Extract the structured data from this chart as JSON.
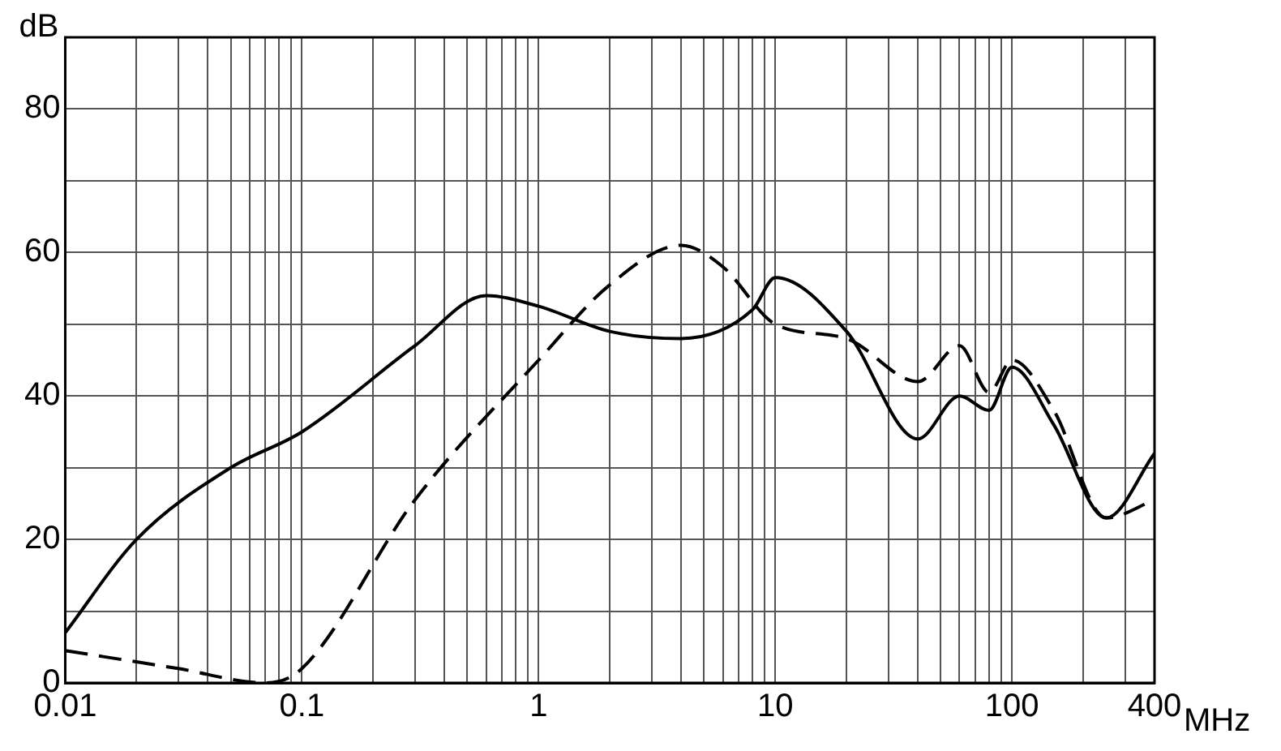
{
  "chart_data": {
    "type": "line",
    "xlabel": "MHz",
    "ylabel": "dB",
    "log": "x",
    "grid": true,
    "legend": false,
    "marker": "none",
    "xlim": [
      0.01,
      400
    ],
    "ylim": [
      0,
      90
    ],
    "xticks": [
      0.01,
      {
        "value": 0.02,
        "label": null
      },
      {
        "value": 0.03,
        "label": null
      },
      {
        "value": 0.04,
        "label": null
      },
      {
        "value": 0.05,
        "label": null
      },
      {
        "value": 0.06,
        "label": null
      },
      {
        "value": 0.07,
        "label": null
      },
      {
        "value": 0.08,
        "label": null
      },
      {
        "value": 0.09,
        "label": null
      },
      0.1,
      {
        "value": 0.2,
        "label": null
      },
      {
        "value": 0.3,
        "label": null
      },
      {
        "value": 0.4,
        "label": null
      },
      {
        "value": 0.5,
        "label": null
      },
      {
        "value": 0.6,
        "label": null
      },
      {
        "value": 0.7,
        "label": null
      },
      {
        "value": 0.8,
        "label": null
      },
      {
        "value": 0.9,
        "label": null
      },
      1,
      {
        "value": 2,
        "label": null
      },
      {
        "value": 3,
        "label": null
      },
      {
        "value": 4,
        "label": null
      },
      {
        "value": 5,
        "label": null
      },
      {
        "value": 6,
        "label": null
      },
      {
        "value": 7,
        "label": null
      },
      {
        "value": 8,
        "label": null
      },
      {
        "value": 9,
        "label": null
      },
      10,
      {
        "value": 20,
        "label": null
      },
      {
        "value": 30,
        "label": null
      },
      {
        "value": 40,
        "label": null
      },
      {
        "value": 50,
        "label": null
      },
      {
        "value": 60,
        "label": null
      },
      {
        "value": 70,
        "label": null
      },
      {
        "value": 80,
        "label": null
      },
      {
        "value": 90,
        "label": null
      },
      100,
      {
        "value": 200,
        "label": null
      },
      {
        "value": 300,
        "label": null
      },
      400
    ],
    "yticks": [
      0,
      {
        "value": 10,
        "label": null
      },
      20,
      {
        "value": 30,
        "label": null
      },
      40,
      {
        "value": 50,
        "label": null
      },
      60,
      {
        "value": 70,
        "label": null
      },
      80,
      {
        "value": 90,
        "label": null
      }
    ],
    "series": [
      {
        "color": "#000000",
        "line_style": "solid",
        "x": [
          0.01,
          0.02,
          0.05,
          0.1,
          0.3,
          0.6,
          1,
          2,
          4,
          8,
          10,
          20,
          40,
          60,
          80,
          100,
          150,
          250,
          400
        ],
        "values": [
          7,
          20,
          30,
          35,
          47,
          54,
          52.5,
          49,
          48,
          52,
          56.5,
          49,
          34,
          40,
          38,
          44,
          36,
          23,
          32
        ]
      },
      {
        "color": "#000000",
        "line_style": "dashed",
        "x": [
          0.01,
          0.03,
          0.07,
          0.1,
          0.3,
          1,
          2,
          4,
          6,
          10,
          20,
          40,
          60,
          80,
          100,
          150,
          250,
          400
        ],
        "values": [
          4.5,
          2,
          0,
          2,
          25.5,
          45,
          55.5,
          61,
          58,
          50,
          48,
          42,
          47,
          40.5,
          45,
          38,
          23,
          25.5
        ]
      }
    ]
  }
}
